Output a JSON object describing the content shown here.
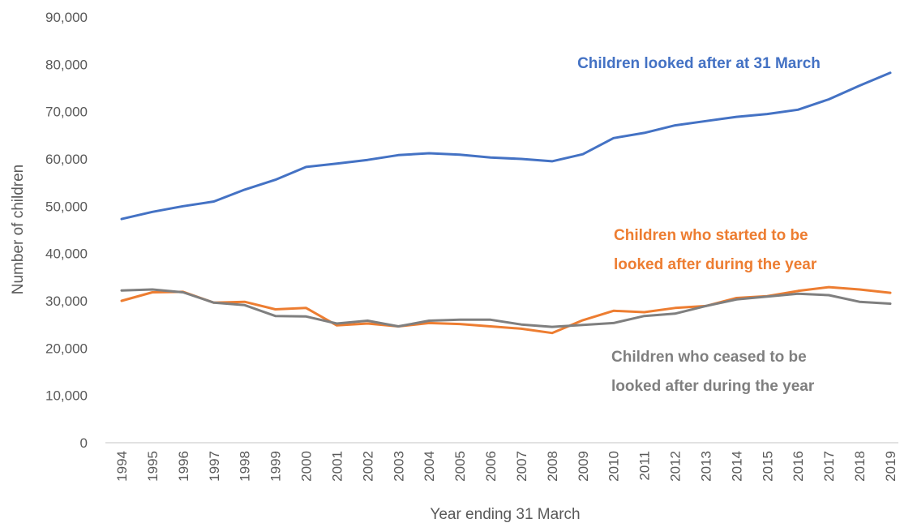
{
  "chart_data": {
    "type": "line",
    "xlabel": "Year ending 31 March",
    "ylabel": "Number of children",
    "ylim": [
      0,
      90000
    ],
    "yticks": [
      0,
      10000,
      20000,
      30000,
      40000,
      50000,
      60000,
      70000,
      80000,
      90000
    ],
    "ytick_labels": [
      "0",
      "10,000",
      "20,000",
      "30,000",
      "40,000",
      "50,000",
      "60,000",
      "70,000",
      "80,000",
      "90,000"
    ],
    "grid": false,
    "legend": "none",
    "x": [
      "1994",
      "1995",
      "1996",
      "1997",
      "1998",
      "1999",
      "2000",
      "2001",
      "2002",
      "2003",
      "2004",
      "2005",
      "2006",
      "2007",
      "2008",
      "2009",
      "2010",
      "2011",
      "2012",
      "2013",
      "2014",
      "2015",
      "2016",
      "2017",
      "2018",
      "2019"
    ],
    "series": [
      {
        "name": "Children looked after at 31 March",
        "label_lines": [
          "Children looked after at 31 March"
        ],
        "color": "#4472C4",
        "values": [
          47300,
          48800,
          50000,
          51000,
          53500,
          55600,
          58300,
          59000,
          59800,
          60800,
          61200,
          60900,
          60300,
          60000,
          59500,
          61000,
          64400,
          65500,
          67100,
          68000,
          68900,
          69500,
          70400,
          72600,
          75500,
          78200
        ]
      },
      {
        "name": "Children who started to be looked after during the year",
        "label_lines": [
          "Children who started to be",
          "looked after during the year"
        ],
        "color": "#ED7D31",
        "values": [
          30000,
          31800,
          31900,
          29600,
          29800,
          28200,
          28500,
          24800,
          25200,
          24600,
          25300,
          25100,
          24600,
          24100,
          23200,
          25900,
          27900,
          27600,
          28500,
          28900,
          30600,
          31000,
          32100,
          32900,
          32400,
          31700
        ]
      },
      {
        "name": "Children who ceased to be looked after during the year",
        "label_lines": [
          "Children who ceased to be",
          "looked after during the year"
        ],
        "color": "#7F7F7F",
        "values": [
          32200,
          32400,
          31800,
          29600,
          29100,
          26800,
          26700,
          25200,
          25800,
          24600,
          25800,
          26000,
          26000,
          25000,
          24500,
          24900,
          25300,
          26800,
          27300,
          28900,
          30300,
          30900,
          31500,
          31200,
          29800,
          29400
        ]
      }
    ]
  }
}
